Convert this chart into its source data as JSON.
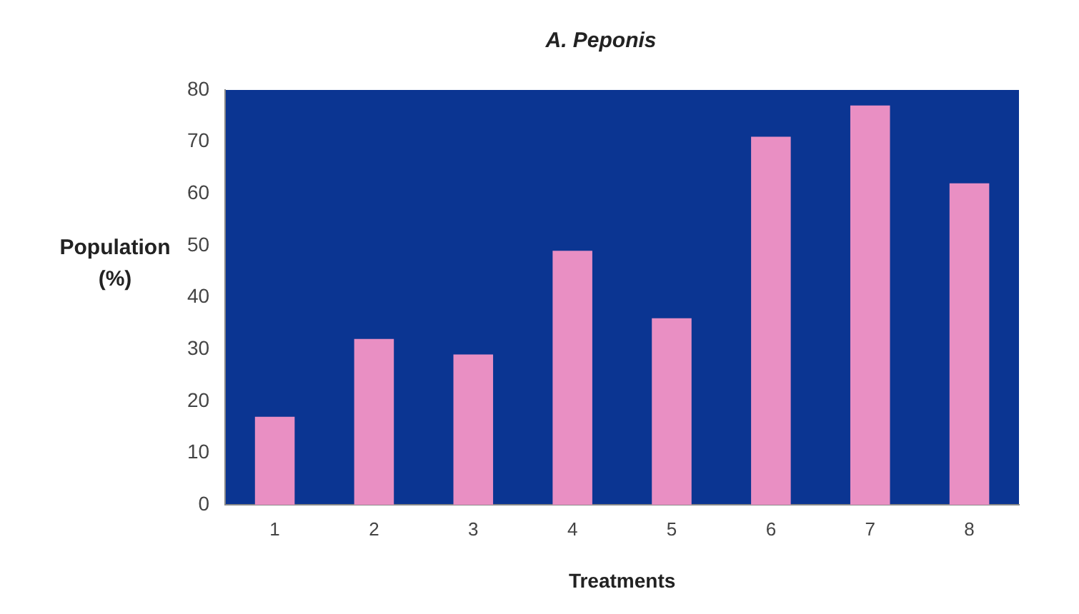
{
  "chart_data": {
    "type": "bar",
    "title": "A. Peponis",
    "xlabel": "Treatments",
    "ylabel": "Population (%)",
    "categories": [
      "1",
      "2",
      "3",
      "4",
      "5",
      "6",
      "7",
      "8"
    ],
    "values": [
      17,
      32,
      29,
      49,
      36,
      71,
      77,
      62
    ],
    "color": "#e98fc3",
    "ylim": [
      0,
      80
    ],
    "yticks": [
      0,
      10,
      20,
      30,
      40,
      50,
      60,
      70,
      80
    ],
    "grid": false,
    "legend": false
  }
}
